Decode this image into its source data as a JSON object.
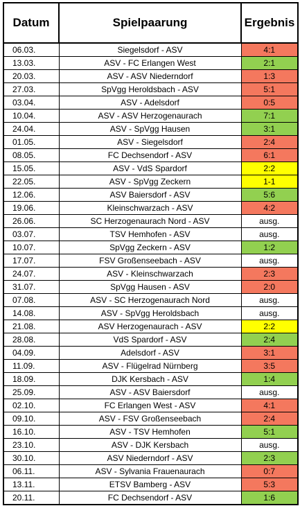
{
  "header": {
    "date": "Datum",
    "match": "Spielpaarung",
    "result": "Ergebnis"
  },
  "colors": {
    "win": "#92d050",
    "loss": "#f4785e",
    "draw": "#ffff00",
    "none": "#ffffff"
  },
  "rows": [
    {
      "date": "06.03.",
      "match": "Siegelsdorf - ASV",
      "result": "4:1",
      "status": "loss"
    },
    {
      "date": "13.03.",
      "match": "ASV - FC Erlangen West",
      "result": "2:1",
      "status": "win"
    },
    {
      "date": "20.03.",
      "match": "ASV - ASV Niederndorf",
      "result": "1:3",
      "status": "loss"
    },
    {
      "date": "27.03.",
      "match": "SpVgg Heroldsbach - ASV",
      "result": "5:1",
      "status": "loss"
    },
    {
      "date": "03.04.",
      "match": "ASV - Adelsdorf",
      "result": "0:5",
      "status": "loss"
    },
    {
      "date": "10.04.",
      "match": "ASV - ASV Herzogenaurach",
      "result": "7:1",
      "status": "win"
    },
    {
      "date": "24.04.",
      "match": "ASV - SpVgg Hausen",
      "result": "3:1",
      "status": "win"
    },
    {
      "date": "01.05.",
      "match": "ASV - Siegelsdorf",
      "result": "2:4",
      "status": "loss"
    },
    {
      "date": "08.05.",
      "match": "FC Dechsendorf - ASV",
      "result": "6:1",
      "status": "loss"
    },
    {
      "date": "15.05.",
      "match": "ASV - VdS Spardorf",
      "result": "2:2",
      "status": "draw"
    },
    {
      "date": "22.05.",
      "match": "ASV - SpVgg Zeckern",
      "result": "1-1",
      "status": "draw"
    },
    {
      "date": "12.06.",
      "match": "ASV Baiersdorf - ASV",
      "result": "5:6",
      "status": "win"
    },
    {
      "date": "19.06.",
      "match": "Kleinschwarzach - ASV",
      "result": "4:2",
      "status": "loss"
    },
    {
      "date": "26.06.",
      "match": "SC Herzogenaurach Nord - ASV",
      "result": "ausg.",
      "status": "none"
    },
    {
      "date": "03.07.",
      "match": "TSV Hemhofen - ASV",
      "result": "ausg.",
      "status": "none"
    },
    {
      "date": "10.07.",
      "match": "SpVgg Zeckern - ASV",
      "result": "1:2",
      "status": "win"
    },
    {
      "date": "17.07.",
      "match": "FSV Großenseebach - ASV",
      "result": "ausg.",
      "status": "none"
    },
    {
      "date": "24.07.",
      "match": "ASV - Kleinschwarzach",
      "result": "2:3",
      "status": "loss"
    },
    {
      "date": "31.07.",
      "match": "SpVgg Hausen - ASV",
      "result": "2:0",
      "status": "loss"
    },
    {
      "date": "07.08.",
      "match": "ASV - SC Herzogenaurach Nord",
      "result": "ausg.",
      "status": "none"
    },
    {
      "date": "14.08.",
      "match": "ASV - SpVgg Heroldsbach",
      "result": "ausg.",
      "status": "none"
    },
    {
      "date": "21.08.",
      "match": "ASV Herzogenaurach - ASV",
      "result": "2:2",
      "status": "draw"
    },
    {
      "date": "28.08.",
      "match": "VdS Spardorf - ASV",
      "result": "2:4",
      "status": "win"
    },
    {
      "date": "04.09.",
      "match": "Adelsdorf - ASV",
      "result": "3:1",
      "status": "loss"
    },
    {
      "date": "11.09.",
      "match": "ASV - Flügelrad Nürnberg",
      "result": "3:5",
      "status": "loss"
    },
    {
      "date": "18.09.",
      "match": "DJK Kersbach - ASV",
      "result": "1:4",
      "status": "win"
    },
    {
      "date": "25.09.",
      "match": "ASV - ASV Baiersdorf",
      "result": "ausg.",
      "status": "none"
    },
    {
      "date": "02.10.",
      "match": "FC Erlangen West - ASV",
      "result": "4:1",
      "status": "loss"
    },
    {
      "date": "09.10.",
      "match": "ASV - FSV Großenseebach",
      "result": "2:4",
      "status": "loss"
    },
    {
      "date": "16.10.",
      "match": "ASV - TSV Hemhofen",
      "result": "5:1",
      "status": "win"
    },
    {
      "date": "23.10.",
      "match": "ASV - DJK Kersbach",
      "result": "ausg.",
      "status": "none"
    },
    {
      "date": "30.10.",
      "match": "ASV Niederndorf - ASV",
      "result": "2:3",
      "status": "win"
    },
    {
      "date": "06.11.",
      "match": "ASV - Sylvania Frauenaurach",
      "result": "0:7",
      "status": "loss"
    },
    {
      "date": "13.11.",
      "match": "ETSV Bamberg - ASV",
      "result": "5:3",
      "status": "loss"
    },
    {
      "date": "20.11.",
      "match": "FC Dechsendorf - ASV",
      "result": "1:6",
      "status": "win"
    }
  ]
}
